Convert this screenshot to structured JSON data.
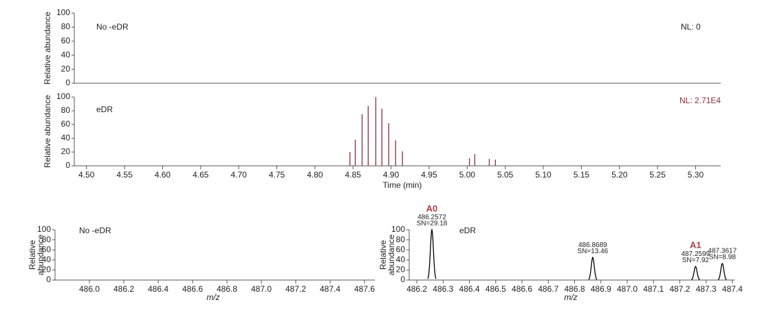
{
  "chart_data": [
    {
      "type": "line",
      "label": "No -eDR",
      "annotation": "NL: 0",
      "ylabel": "Relative abundance",
      "ylim": [
        0,
        100
      ],
      "yticks": [
        0,
        20,
        40,
        60,
        80,
        100
      ]
    },
    {
      "type": "bar",
      "label": "eDR",
      "annotation": "NL: 2.71E4",
      "annotation_color": "#8b2f3c",
      "ylabel": "Relative abundance",
      "xlabel": "Time (min)",
      "color": "#8b2f3c",
      "x": [
        4.846,
        4.853,
        4.862,
        4.87,
        4.88,
        4.888,
        4.897,
        4.906,
        4.915,
        5.003,
        5.01,
        5.029,
        5.037
      ],
      "values": [
        20,
        38,
        75,
        87,
        100,
        83,
        62,
        37,
        21,
        11,
        17,
        10,
        9
      ],
      "xlim": [
        4.484,
        5.333
      ],
      "ylim": [
        0,
        100
      ],
      "yticks": [
        0,
        20,
        40,
        60,
        80,
        100
      ],
      "xticks": [
        {
          "value": 4.5,
          "label": "4.50"
        },
        4.55,
        {
          "value": 4.6,
          "label": "4.60"
        },
        4.65,
        {
          "value": 4.7,
          "label": "4.70"
        },
        4.75,
        {
          "value": 4.8,
          "label": "4.80"
        },
        4.85,
        {
          "value": 4.9,
          "label": "4.90"
        },
        4.95,
        {
          "value": 5.0,
          "label": "5.00"
        },
        5.05,
        {
          "value": 5.1,
          "label": "5.10"
        },
        5.15,
        {
          "value": 5.2,
          "label": "5.20"
        },
        5.25,
        {
          "value": 5.3,
          "label": "5.30"
        }
      ]
    },
    {
      "type": "line",
      "label": "No -eDR",
      "ylabel_lines": [
        "Relative",
        "abundance"
      ],
      "xlabel": "m/z",
      "xlim": [
        485.8,
        487.66
      ],
      "ylim": [
        0,
        100
      ],
      "yticks": [
        0,
        20,
        40,
        60,
        80,
        100
      ],
      "xticks": [
        {
          "value": 486.0,
          "label": "486.0"
        },
        486.2,
        486.4,
        486.6,
        486.8,
        {
          "value": 487.0,
          "label": "487.0"
        },
        487.2,
        487.4,
        487.6
      ]
    },
    {
      "type": "line",
      "label": "eDR",
      "ylabel_lines": [
        "Relative",
        "abundance"
      ],
      "xlabel": "m/z",
      "color": "#000000",
      "name_color": "#b03a48",
      "x": [
        486.2572,
        486.8689,
        487.2599,
        487.3617
      ],
      "values": [
        100,
        45,
        27,
        33
      ],
      "peak_names": [
        "A0",
        null,
        "A1",
        null
      ],
      "sn_labels": [
        "SN=29.18",
        "SN=13.46",
        "SN=7.92",
        "SN=8.98"
      ],
      "xlim": [
        486.171,
        487.408
      ],
      "ylim": [
        0,
        100
      ],
      "yticks": [
        0,
        20,
        40,
        60,
        80,
        100
      ],
      "xticks": [
        486.2,
        486.3,
        486.4,
        486.5,
        486.6,
        486.7,
        486.8,
        486.9,
        {
          "value": 487.0,
          "label": "487.0"
        },
        487.1,
        487.2,
        487.3,
        487.4
      ]
    }
  ]
}
